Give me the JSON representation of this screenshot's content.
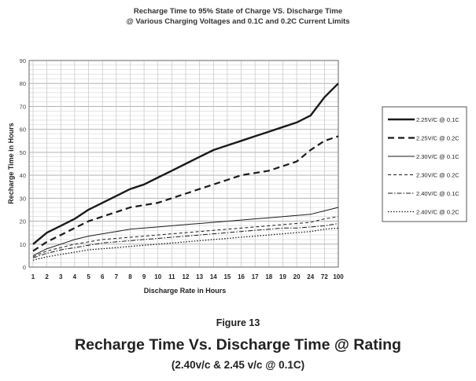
{
  "chart_title": {
    "line1": "Recharge Time to 95% State of Charge VS. Discharge Time",
    "line2": "@ Various Charging Voltages and 0.1C and 0.2C Current Limits"
  },
  "figure": {
    "label": "Figure 13",
    "caption": "Recharge Time Vs. Discharge Time @ Rating",
    "subcaption": "(2.40v/c & 2.45 v/c @ 0.1C)"
  },
  "chart_data": {
    "type": "line",
    "title": "Recharge Time to 95% State of Charge VS. Discharge Time @ Various Charging Voltages and 0.1C and 0.2C Current Limits",
    "xlabel": "Discharge Rate in Hours",
    "ylabel": "Recharge Time in Hours",
    "categories": [
      "1",
      "2",
      "3",
      "4",
      "5",
      "6",
      "7",
      "8",
      "9",
      "10",
      "11",
      "12",
      "13",
      "14",
      "15",
      "16",
      "17",
      "18",
      "19",
      "20",
      "24",
      "72",
      "100"
    ],
    "y_ticks": [
      "0",
      "10",
      "20",
      "30",
      "40",
      "50",
      "60",
      "70",
      "80",
      "90"
    ],
    "ylim": [
      0,
      90
    ],
    "grid": true,
    "legend_position": "right",
    "series": [
      {
        "name": "2.25V/C @ 0.1C",
        "style": "solid-thick",
        "values": [
          10,
          15,
          18,
          21,
          25,
          28,
          31,
          34,
          36,
          39,
          42,
          45,
          48,
          51,
          53,
          55,
          57,
          59,
          61,
          63,
          66,
          74,
          80
        ]
      },
      {
        "name": "2.25V/C @ 0.2C",
        "style": "dashed-thick",
        "values": [
          7,
          11,
          14,
          17,
          20,
          22,
          24,
          26,
          27,
          28,
          30,
          32,
          34,
          36,
          38,
          40,
          41,
          42,
          44,
          46,
          51,
          55,
          57
        ]
      },
      {
        "name": "2.30V/C @ 0.1C",
        "style": "solid-thin",
        "values": [
          5,
          8,
          10,
          12,
          13.5,
          14.5,
          15.5,
          16.5,
          17,
          17.5,
          18,
          18.5,
          19,
          19.5,
          20,
          20.5,
          21,
          21.5,
          22,
          22.5,
          23,
          24.5,
          26
        ]
      },
      {
        "name": "2.30V/C @ 0.2C",
        "style": "dashed-thin",
        "values": [
          4.5,
          7,
          8.5,
          10,
          11,
          12,
          12.5,
          13,
          13.5,
          14,
          14.5,
          15,
          15.5,
          16,
          16.5,
          17,
          17.5,
          18,
          18.5,
          19,
          19.5,
          21,
          22
        ]
      },
      {
        "name": "2.40V/C @ 0.1C",
        "style": "dashdot-thin",
        "values": [
          4,
          6,
          7.5,
          8.5,
          9.5,
          10.5,
          11,
          11.5,
          12,
          12.5,
          13,
          13.5,
          14,
          14.5,
          15,
          15.5,
          16,
          16.5,
          17,
          17,
          17.5,
          18,
          19
        ]
      },
      {
        "name": "2.40V/C @ 0.2C",
        "style": "dotted-thin",
        "values": [
          3,
          4.5,
          5.5,
          6.5,
          7.5,
          8,
          8.5,
          9,
          9.5,
          10,
          10.5,
          11,
          11.5,
          12,
          12.5,
          13,
          13.5,
          14,
          14.5,
          15,
          15.5,
          16.5,
          17
        ]
      }
    ]
  }
}
